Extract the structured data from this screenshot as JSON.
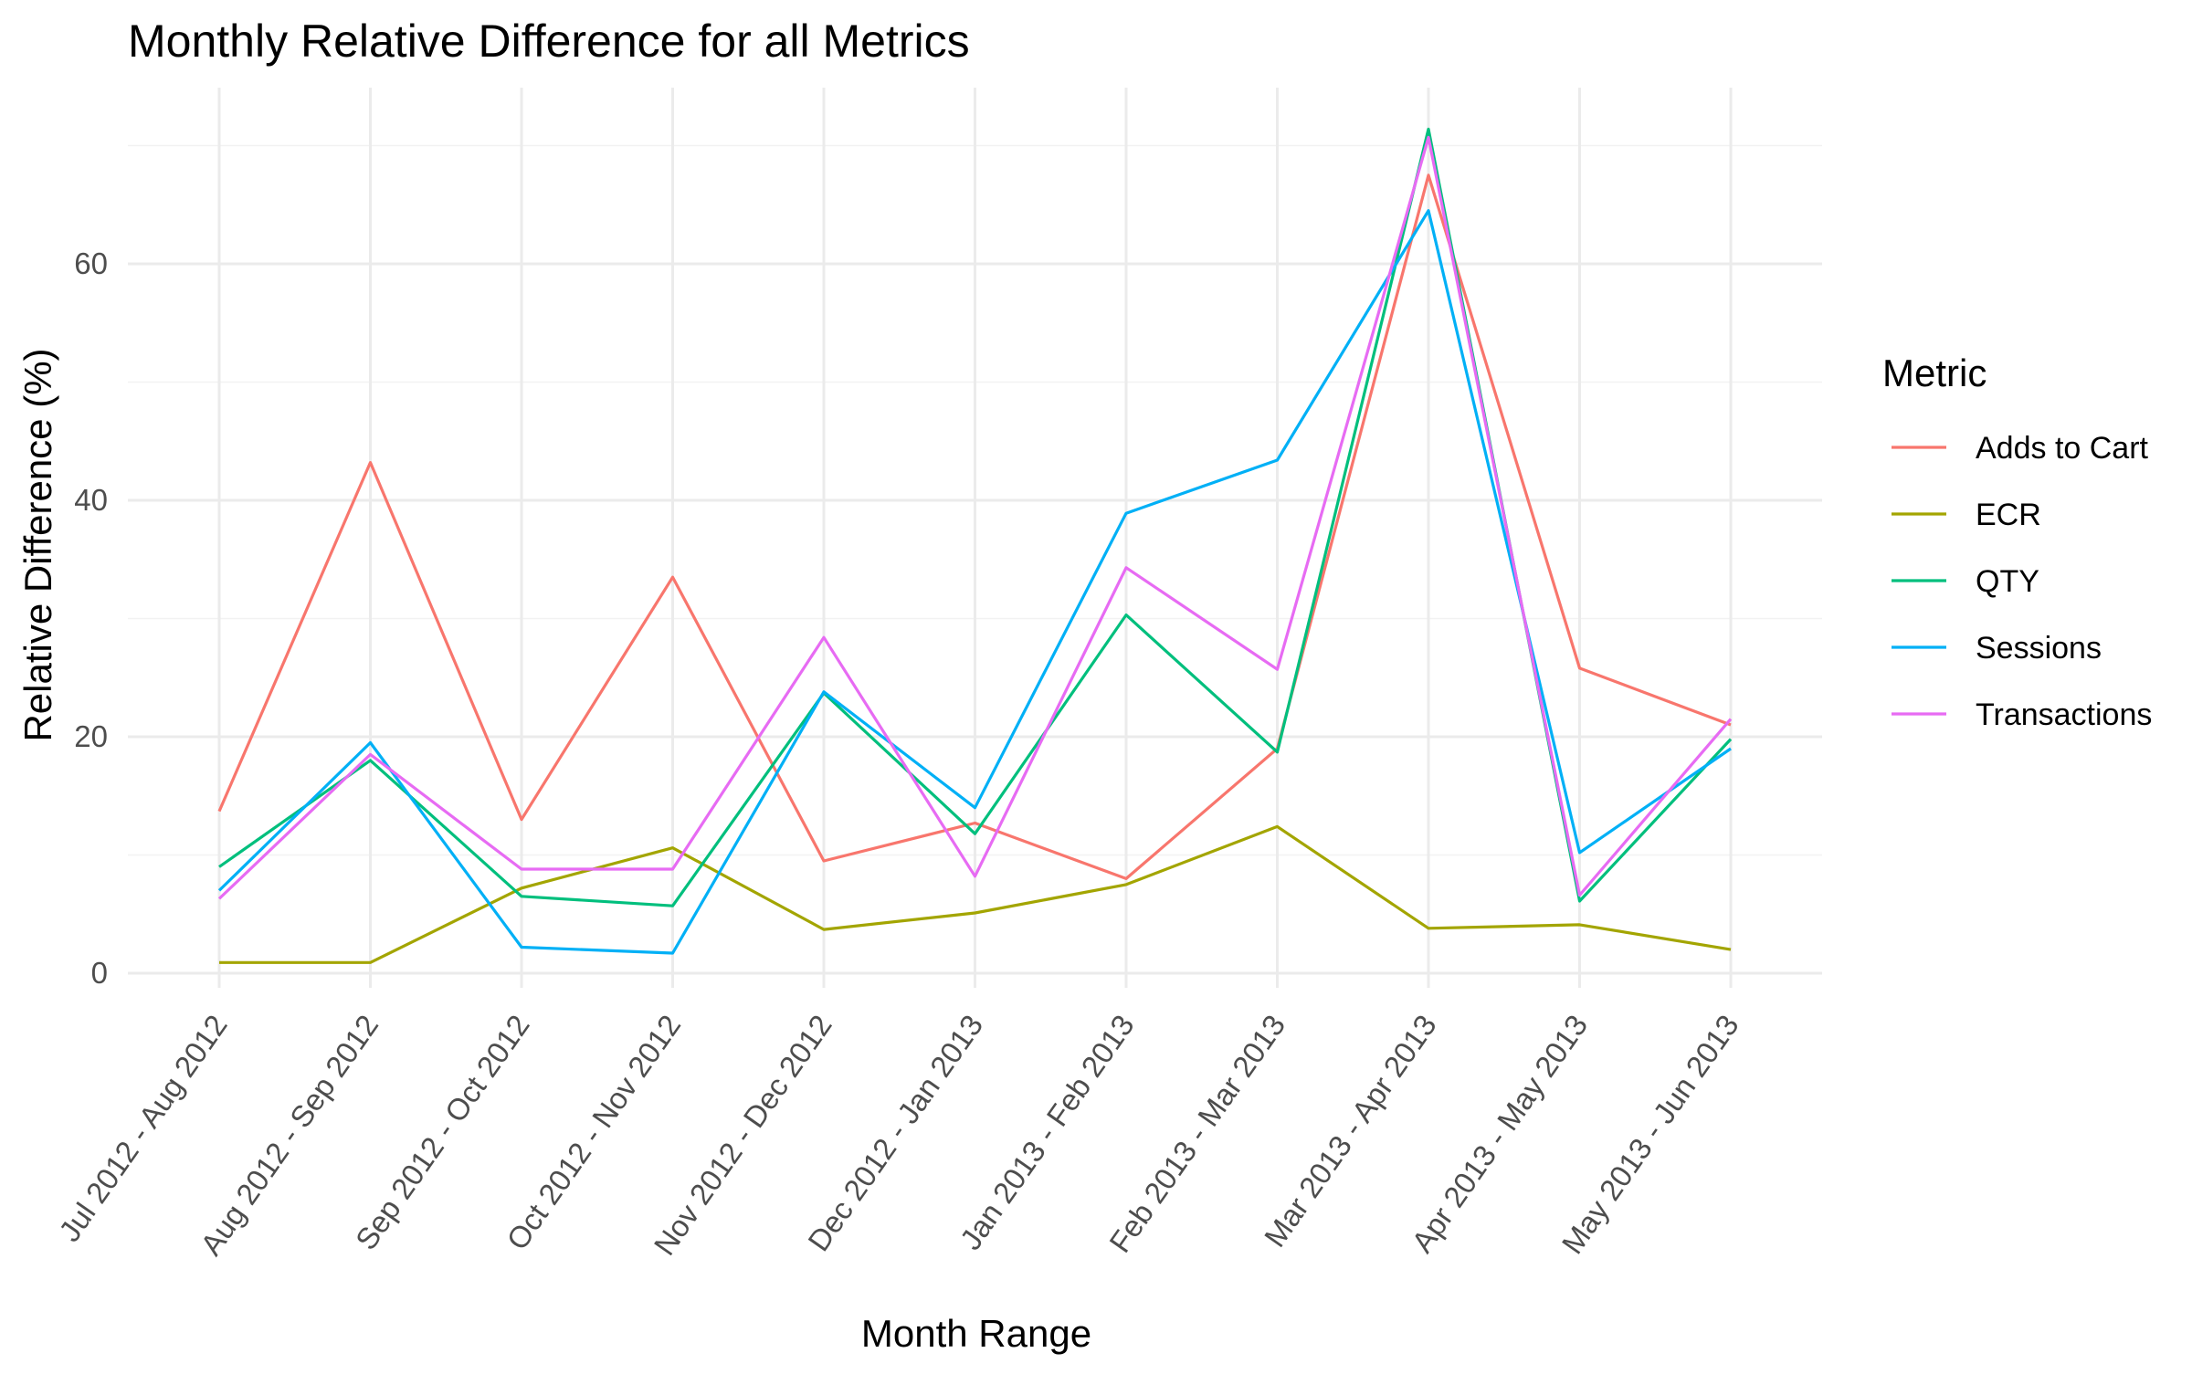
{
  "chart_data": {
    "type": "line",
    "title": "Monthly Relative Difference for all Metrics",
    "xlabel": "Month Range",
    "ylabel": "Relative Difference (%)",
    "ylim": [
      0,
      72
    ],
    "yticks": [
      0,
      20,
      40,
      60
    ],
    "grid": true,
    "legend": {
      "title": "Metric",
      "position": "right"
    },
    "categories": [
      "Jul 2012 - Aug 2012",
      "Aug 2012 - Sep 2012",
      "Sep 2012 - Oct 2012",
      "Oct 2012 - Nov 2012",
      "Nov 2012 - Dec 2012",
      "Dec 2012 - Jan 2013",
      "Jan 2013 - Feb 2013",
      "Feb 2013 - Mar 2013",
      "Mar 2013 - Apr 2013",
      "Apr 2013 - May 2013",
      "May 2013 - Jun 2013"
    ],
    "series": [
      {
        "name": "Adds to Cart",
        "color": "#F8766D",
        "values": [
          13.7,
          43.2,
          13.0,
          33.5,
          9.5,
          12.7,
          8.0,
          19.0,
          67.5,
          25.8,
          21.0
        ]
      },
      {
        "name": "ECR",
        "color": "#A3A500",
        "values": [
          0.9,
          0.9,
          7.2,
          10.6,
          3.7,
          5.1,
          7.5,
          12.4,
          3.8,
          4.1,
          2.0
        ]
      },
      {
        "name": "QTY",
        "color": "#00BF7D",
        "values": [
          9.0,
          18.0,
          6.5,
          5.7,
          23.7,
          11.8,
          30.3,
          18.7,
          71.4,
          6.1,
          19.8
        ]
      },
      {
        "name": "Sessions",
        "color": "#00B0F6",
        "values": [
          7.0,
          19.5,
          2.2,
          1.7,
          23.8,
          14.0,
          38.9,
          43.4,
          64.5,
          10.2,
          19.0
        ]
      },
      {
        "name": "Transactions",
        "color": "#E76BF3",
        "values": [
          6.3,
          18.5,
          8.8,
          8.8,
          28.4,
          8.2,
          34.3,
          25.7,
          70.7,
          6.6,
          21.5
        ]
      }
    ]
  }
}
